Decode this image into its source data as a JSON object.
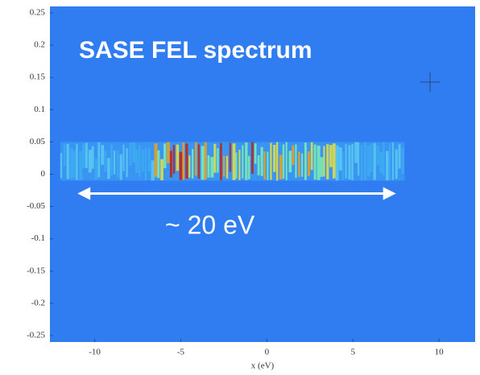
{
  "chart_data": {
    "type": "spectrum",
    "title": "SASE FEL spectrum",
    "annotation": "~ 20 eV",
    "x_label": "x (eV)",
    "xlim": [
      -12.6,
      12.1
    ],
    "ylim": [
      -0.26,
      0.26
    ],
    "xticks": [
      -10,
      -5,
      0,
      5,
      10
    ],
    "yticks": [
      0.25,
      0.2,
      0.15,
      0.1,
      0.05,
      0,
      -0.05,
      -0.1,
      -0.15,
      -0.2,
      -0.25
    ],
    "background": "#2f7df0",
    "spectrum": {
      "x": [
        -12,
        8
      ],
      "y": [
        -0.01,
        0.05
      ]
    },
    "arrow": {
      "x": [
        -11,
        7.5
      ],
      "y": -0.03,
      "color": "#ffffff"
    }
  }
}
